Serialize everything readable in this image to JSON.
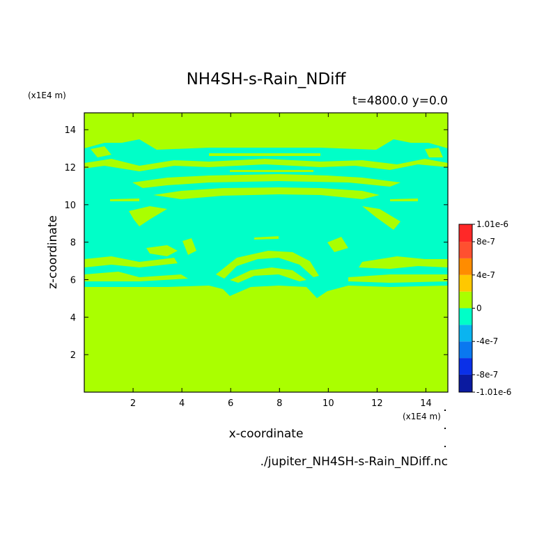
{
  "chart_data": {
    "type": "heatmap",
    "title": "NH4SH-s-Rain_NDiff",
    "subtitle": "t=4800.0 y=0.0",
    "xlabel": "x-coordinate",
    "ylabel": "z-coordinate",
    "x_unit": "(x1E4 m)",
    "y_unit": "(x1E4 m)",
    "source_file": "./jupiter_NH4SH-s-Rain_NDiff.nc",
    "xlim": [
      0,
      14.9
    ],
    "ylim": [
      0,
      14.9
    ],
    "x_ticks": [
      2,
      4,
      6,
      8,
      10,
      12,
      14
    ],
    "y_ticks": [
      2,
      4,
      6,
      8,
      10,
      12,
      14
    ],
    "background_value": "0 to 2e-7",
    "dominant_anomaly_value": "-2e-7 to 0",
    "colorbar": {
      "levels": [
        -1.01e-06,
        -8e-07,
        -6e-07,
        -4e-07,
        -2e-07,
        0,
        2e-07,
        4e-07,
        6e-07,
        8e-07,
        1.01e-06
      ],
      "colors": [
        "#0a1aa0",
        "#0a30e8",
        "#0a78f0",
        "#0ab4f0",
        "#00ffc8",
        "#aaff00",
        "#ffc800",
        "#ff8c00",
        "#ff5030",
        "#ff2828"
      ],
      "tick_labels": [
        "1.01e-6",
        "8e-7",
        "4e-7",
        "0",
        "-4e-7",
        "-8e-7",
        "-1.01e-6"
      ]
    }
  }
}
